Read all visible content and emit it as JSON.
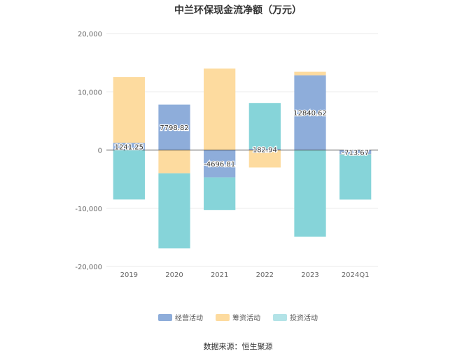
{
  "chart_data": {
    "type": "bar",
    "stacked": true,
    "title": "中兰环保现金流净额（万元）",
    "categories": [
      "2019",
      "2020",
      "2021",
      "2022",
      "2023",
      "2024Q1"
    ],
    "ylim": [
      -20000,
      20000
    ],
    "yticks": [
      "20,000",
      "10,000",
      "0",
      "-10,000",
      "-20,000"
    ],
    "ytick_values": [
      20000,
      10000,
      0,
      -10000,
      -20000
    ],
    "grid": true,
    "legend_position": "bottom",
    "series": [
      {
        "name": "经营活动",
        "color": "#8eadda",
        "values": [
          1241.25,
          7798.82,
          -4696.81,
          182.94,
          12840.62,
          -713.67
        ],
        "labels": [
          "1241.25",
          "7798.82",
          "-4696.81",
          "182.94",
          "12840.62",
          "-713.67"
        ]
      },
      {
        "name": "筹资活动",
        "color": "#fddb9f",
        "values": [
          11300,
          -4000,
          14000,
          -3000,
          600,
          -50
        ]
      },
      {
        "name": "投资活动",
        "color": "#86d4d9",
        "values": [
          -8500,
          -12900,
          -5600,
          7900,
          -14900,
          -7750
        ]
      }
    ]
  },
  "legend": {
    "items": [
      "经营活动",
      "筹资活动",
      "投资活动"
    ],
    "colors": [
      "#8eadda",
      "#fddb9f",
      "#b3e3e7"
    ]
  },
  "source": "数据来源：恒生聚源"
}
